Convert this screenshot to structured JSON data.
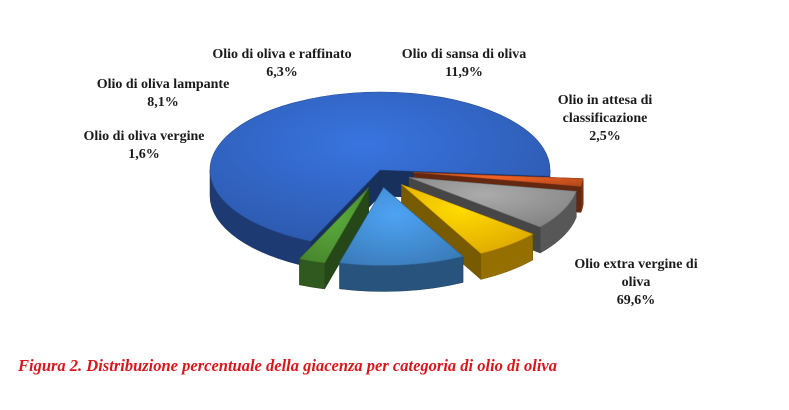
{
  "chart_data": {
    "type": "pie",
    "style": "3d-exploded",
    "categories": [
      "Olio extra vergine di oliva",
      "Olio di oliva vergine",
      "Olio di oliva lampante",
      "Olio di oliva e raffinato",
      "Olio di sansa di oliva",
      "Olio in attesa di classificazione"
    ],
    "values": [
      69.6,
      1.6,
      8.1,
      6.3,
      11.9,
      2.5
    ],
    "value_labels": [
      "69,6%",
      "1,6%",
      "8,1%",
      "6,3%",
      "11,9%",
      "2,5%"
    ],
    "colors": [
      "#2f5fb8",
      "#c6501e",
      "#8c8c8c",
      "#f0b400",
      "#3f86c8",
      "#4c8f31"
    ],
    "legend": "none"
  },
  "labels": [
    {
      "lines": [
        "Olio extra vergine di",
        "oliva"
      ],
      "value": "69,6%"
    },
    {
      "lines": [
        "Olio di oliva vergine"
      ],
      "value": "1,6%"
    },
    {
      "lines": [
        "Olio di oliva lampante"
      ],
      "value": "8,1%"
    },
    {
      "lines": [
        "Olio di oliva e raffinato"
      ],
      "value": "6,3%"
    },
    {
      "lines": [
        "Olio di sansa di oliva"
      ],
      "value": "11,9%"
    },
    {
      "lines": [
        "Olio in attesa di",
        "classificazione"
      ],
      "value": "2,5%"
    }
  ],
  "caption": "Figura 2. Distribuzione percentuale della giacenza per categoria di olio di oliva"
}
